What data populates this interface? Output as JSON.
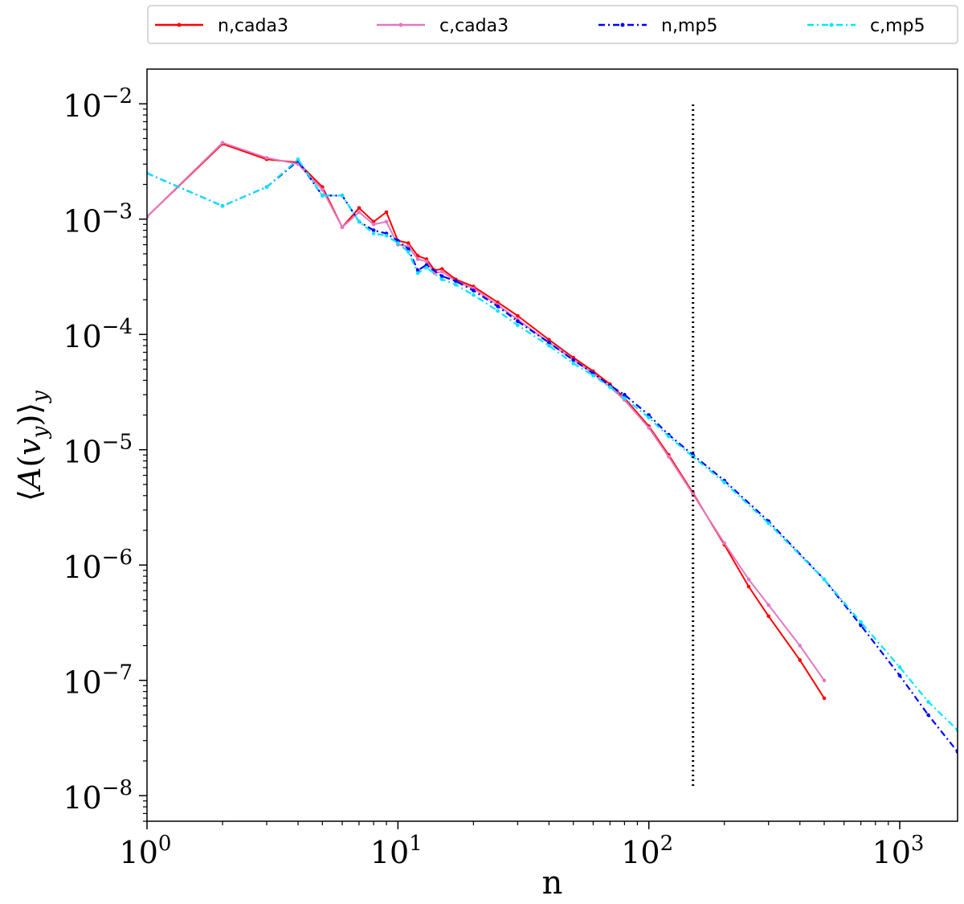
{
  "chart_data": {
    "type": "line",
    "title": "",
    "xlabel": "n",
    "ylabel": "⟨A(v_y)⟩_y",
    "x_scale": "log",
    "y_scale": "log",
    "xlim": [
      1,
      1700
    ],
    "ylim": [
      6e-09,
      0.02
    ],
    "x_ticks": [
      1,
      10,
      100,
      1000
    ],
    "x_tick_labels": [
      {
        "base": "10",
        "exp": "0"
      },
      {
        "base": "10",
        "exp": "1"
      },
      {
        "base": "10",
        "exp": "2"
      },
      {
        "base": "10",
        "exp": "3"
      }
    ],
    "y_ticks": [
      1e-08,
      1e-07,
      1e-06,
      1e-05,
      0.0001,
      0.001,
      0.01
    ],
    "y_tick_labels": [
      {
        "base": "10",
        "exp": "−8"
      },
      {
        "base": "10",
        "exp": "−7"
      },
      {
        "base": "10",
        "exp": "−6"
      },
      {
        "base": "10",
        "exp": "−5"
      },
      {
        "base": "10",
        "exp": "−4"
      },
      {
        "base": "10",
        "exp": "−3"
      },
      {
        "base": "10",
        "exp": "−2"
      }
    ],
    "grid": false,
    "legend_placement": "top, outside plot",
    "vertical_reference_line": {
      "x": 150,
      "style": "dotted",
      "color": "#000000"
    },
    "series": [
      {
        "name": "n,cada3",
        "color": "#ff0000",
        "style": "solid",
        "marker": "dot",
        "points": [
          [
            1,
            0.00105
          ],
          [
            2,
            0.0045
          ],
          [
            3,
            0.0033
          ],
          [
            4,
            0.0031
          ],
          [
            5,
            0.0019
          ],
          [
            6,
            0.00085
          ],
          [
            7,
            0.00125
          ],
          [
            8,
            0.00095
          ],
          [
            9,
            0.00115
          ],
          [
            10,
            0.00065
          ],
          [
            11,
            0.00062
          ],
          [
            12,
            0.00048
          ],
          [
            13,
            0.00045
          ],
          [
            14,
            0.00036
          ],
          [
            15,
            0.00037
          ],
          [
            17,
            0.0003
          ],
          [
            20,
            0.00026
          ],
          [
            25,
            0.00019
          ],
          [
            30,
            0.000145
          ],
          [
            40,
            9e-05
          ],
          [
            50,
            6.3e-05
          ],
          [
            60,
            4.8e-05
          ],
          [
            70,
            3.7e-05
          ],
          [
            80,
            2.8e-05
          ],
          [
            100,
            1.6e-05
          ],
          [
            120,
            9e-06
          ],
          [
            150,
            4.2e-06
          ],
          [
            200,
            1.5e-06
          ],
          [
            250,
            6.5e-07
          ],
          [
            300,
            3.6e-07
          ],
          [
            400,
            1.5e-07
          ],
          [
            500,
            7e-08
          ]
        ]
      },
      {
        "name": "c,cada3",
        "color": "#e377c2",
        "style": "solid",
        "marker": "dot",
        "points": [
          [
            1,
            0.00105
          ],
          [
            2,
            0.0046
          ],
          [
            3,
            0.0034
          ],
          [
            4,
            0.003
          ],
          [
            5,
            0.0018
          ],
          [
            6,
            0.00085
          ],
          [
            7,
            0.00115
          ],
          [
            8,
            0.0009
          ],
          [
            9,
            0.00095
          ],
          [
            10,
            0.0006
          ],
          [
            11,
            0.00058
          ],
          [
            12,
            0.00045
          ],
          [
            13,
            0.00043
          ],
          [
            14,
            0.00034
          ],
          [
            15,
            0.00035
          ],
          [
            17,
            0.00029
          ],
          [
            20,
            0.00025
          ],
          [
            25,
            0.00018
          ],
          [
            30,
            0.000135
          ],
          [
            40,
            8.5e-05
          ],
          [
            50,
            6e-05
          ],
          [
            60,
            4.6e-05
          ],
          [
            70,
            3.5e-05
          ],
          [
            80,
            2.7e-05
          ],
          [
            100,
            1.55e-05
          ],
          [
            120,
            8.7e-06
          ],
          [
            150,
            4.1e-06
          ],
          [
            200,
            1.55e-06
          ],
          [
            250,
            7.5e-07
          ],
          [
            300,
            4.5e-07
          ],
          [
            400,
            2e-07
          ],
          [
            500,
            1e-07
          ]
        ]
      },
      {
        "name": "n,mp5",
        "color": "#0000ff",
        "style": "dashdot",
        "marker": "dot",
        "points": [
          [
            1,
            0.0025
          ],
          [
            2,
            0.0013
          ],
          [
            3,
            0.0019
          ],
          [
            4,
            0.0032
          ],
          [
            5,
            0.0016
          ],
          [
            6,
            0.0016
          ],
          [
            7,
            0.00095
          ],
          [
            8,
            0.0008
          ],
          [
            9,
            0.00075
          ],
          [
            10,
            0.00065
          ],
          [
            11,
            0.00055
          ],
          [
            12,
            0.00036
          ],
          [
            13,
            0.0004
          ],
          [
            15,
            0.00032
          ],
          [
            17,
            0.00029
          ],
          [
            20,
            0.00024
          ],
          [
            25,
            0.000175
          ],
          [
            30,
            0.00013
          ],
          [
            40,
            8.5e-05
          ],
          [
            50,
            6e-05
          ],
          [
            60,
            4.6e-05
          ],
          [
            70,
            3.6e-05
          ],
          [
            80,
            3e-05
          ],
          [
            100,
            2e-05
          ],
          [
            120,
            1.35e-05
          ],
          [
            150,
            9e-06
          ],
          [
            200,
            5.4e-06
          ],
          [
            300,
            2.4e-06
          ],
          [
            500,
            7.5e-07
          ],
          [
            700,
            3e-07
          ],
          [
            1000,
            1.1e-07
          ],
          [
            1300,
            5e-08
          ],
          [
            1700,
            2.4e-08
          ]
        ]
      },
      {
        "name": "c,mp5",
        "color": "#00e5ff",
        "style": "dashdot",
        "marker": "dot",
        "points": [
          [
            1,
            0.0025
          ],
          [
            2,
            0.0013
          ],
          [
            3,
            0.0019
          ],
          [
            4,
            0.0033
          ],
          [
            5,
            0.0016
          ],
          [
            6,
            0.0016
          ],
          [
            7,
            0.00095
          ],
          [
            8,
            0.00075
          ],
          [
            9,
            0.00072
          ],
          [
            10,
            0.00062
          ],
          [
            11,
            0.00052
          ],
          [
            12,
            0.00034
          ],
          [
            13,
            0.00038
          ],
          [
            15,
            0.0003
          ],
          [
            17,
            0.00027
          ],
          [
            20,
            0.00022
          ],
          [
            25,
            0.00016
          ],
          [
            30,
            0.00012
          ],
          [
            40,
            8e-05
          ],
          [
            50,
            5.6e-05
          ],
          [
            60,
            4.4e-05
          ],
          [
            70,
            3.5e-05
          ],
          [
            80,
            2.8e-05
          ],
          [
            100,
            1.9e-05
          ],
          [
            120,
            1.3e-05
          ],
          [
            150,
            8.7e-06
          ],
          [
            200,
            5.2e-06
          ],
          [
            300,
            2.3e-06
          ],
          [
            500,
            7.5e-07
          ],
          [
            700,
            3.2e-07
          ],
          [
            1000,
            1.3e-07
          ],
          [
            1300,
            6.5e-08
          ],
          [
            1700,
            3.7e-08
          ]
        ]
      }
    ]
  }
}
